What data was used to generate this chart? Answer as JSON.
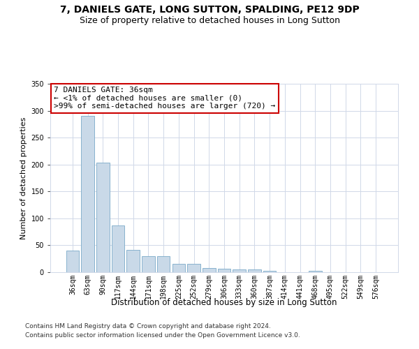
{
  "title1": "7, DANIELS GATE, LONG SUTTON, SPALDING, PE12 9DP",
  "title2": "Size of property relative to detached houses in Long Sutton",
  "xlabel": "Distribution of detached houses by size in Long Sutton",
  "ylabel": "Number of detached properties",
  "categories": [
    "36sqm",
    "63sqm",
    "90sqm",
    "117sqm",
    "144sqm",
    "171sqm",
    "198sqm",
    "225sqm",
    "252sqm",
    "279sqm",
    "306sqm",
    "333sqm",
    "360sqm",
    "387sqm",
    "414sqm",
    "441sqm",
    "468sqm",
    "495sqm",
    "522sqm",
    "549sqm",
    "576sqm"
  ],
  "values": [
    40,
    290,
    204,
    87,
    42,
    30,
    30,
    16,
    16,
    8,
    6,
    5,
    5,
    3,
    0,
    0,
    3,
    0,
    0,
    0,
    0
  ],
  "bar_color": "#c9d9e8",
  "bar_edge_color": "#7aaac8",
  "annotation_box_color": "#ffffff",
  "annotation_border_color": "#cc0000",
  "annotation_title": "7 DANIELS GATE: 36sqm",
  "annotation_line1": "← <1% of detached houses are smaller (0)",
  "annotation_line2": ">99% of semi-detached houses are larger (720) →",
  "ylim": [
    0,
    350
  ],
  "yticks": [
    0,
    50,
    100,
    150,
    200,
    250,
    300,
    350
  ],
  "footer1": "Contains HM Land Registry data © Crown copyright and database right 2024.",
  "footer2": "Contains public sector information licensed under the Open Government Licence v3.0.",
  "bg_color": "#ffffff",
  "grid_color": "#d0d8e8",
  "title1_fontsize": 10,
  "title2_fontsize": 9,
  "xlabel_fontsize": 8.5,
  "ylabel_fontsize": 8,
  "tick_fontsize": 7,
  "annotation_fontsize": 8,
  "footer_fontsize": 6.5
}
